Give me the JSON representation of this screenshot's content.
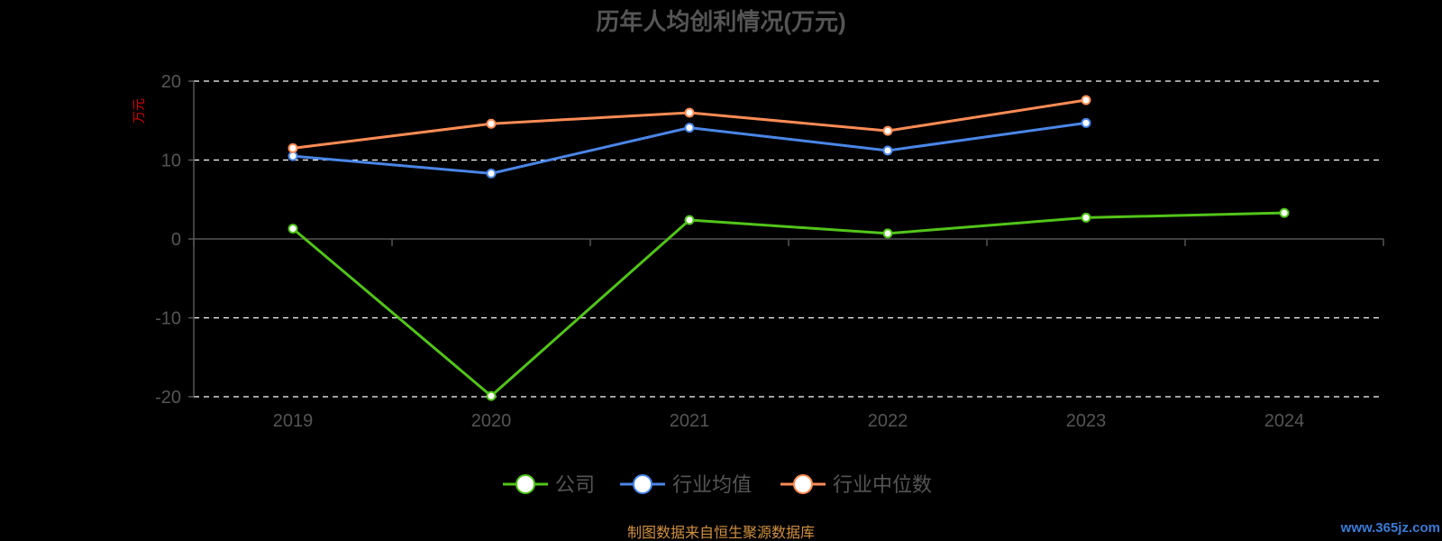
{
  "chart_data": {
    "type": "line",
    "title": "历年人均创利情况(万元)",
    "ylabel": "万元",
    "x": [
      "2019",
      "2020",
      "2021",
      "2022",
      "2023",
      "2024"
    ],
    "ylim": [
      -20,
      20
    ],
    "yticks": [
      20,
      10,
      0,
      -10,
      -20
    ],
    "grid": true,
    "legend_position": "bottom",
    "series": [
      {
        "name": "公司",
        "color": "#52c41a",
        "values": [
          1.3,
          -19.9,
          2.4,
          0.7,
          2.7,
          3.3
        ]
      },
      {
        "name": "行业均值",
        "color": "#4a86e8",
        "values": [
          10.5,
          8.3,
          14.1,
          11.2,
          14.7,
          null
        ]
      },
      {
        "name": "行业中位数",
        "color": "#ff8c55",
        "values": [
          11.5,
          14.6,
          16.0,
          13.7,
          17.6,
          null
        ]
      }
    ]
  },
  "footer": {
    "source": "制图数据来自恒生聚源数据库",
    "watermark": "www.365jz.com"
  }
}
